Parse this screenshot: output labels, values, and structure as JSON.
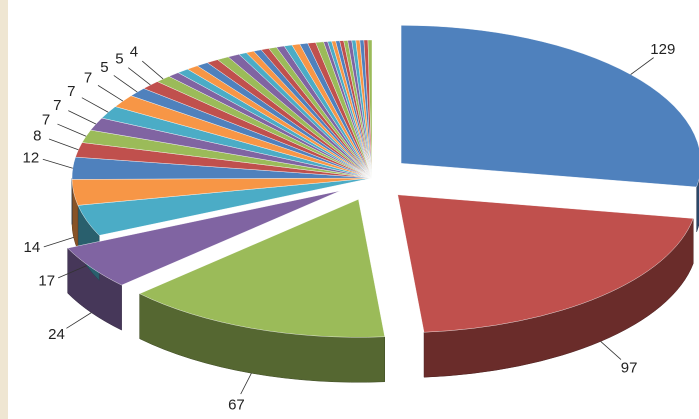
{
  "chart_data": {
    "type": "pie",
    "values": [
      129,
      97,
      67,
      24,
      17,
      14,
      12,
      8,
      7,
      7,
      7,
      7,
      5,
      5,
      4,
      3,
      3,
      3,
      3,
      3,
      3,
      3,
      2,
      2,
      2,
      2,
      2,
      2,
      2,
      2,
      2,
      2,
      2,
      1,
      1,
      1,
      1,
      1,
      1,
      1,
      1,
      1,
      1,
      1,
      1
    ],
    "value_labels": [
      "129",
      "97",
      "67",
      "24",
      "17",
      "14",
      "12",
      "8",
      "7",
      "7",
      "7",
      "7",
      "5",
      "5",
      "4",
      null,
      null,
      null,
      null,
      null,
      null,
      null,
      null,
      null,
      null,
      null,
      null,
      null,
      null,
      null,
      null,
      null,
      null,
      null,
      null,
      null,
      null,
      null,
      null,
      null,
      null,
      null,
      null,
      null,
      null
    ],
    "colors": [
      "#4f81bd",
      "#c0504d",
      "#9bbb59",
      "#8064a2",
      "#4bacc6",
      "#f79646"
    ],
    "exploded": [
      true,
      true,
      true,
      true
    ]
  }
}
